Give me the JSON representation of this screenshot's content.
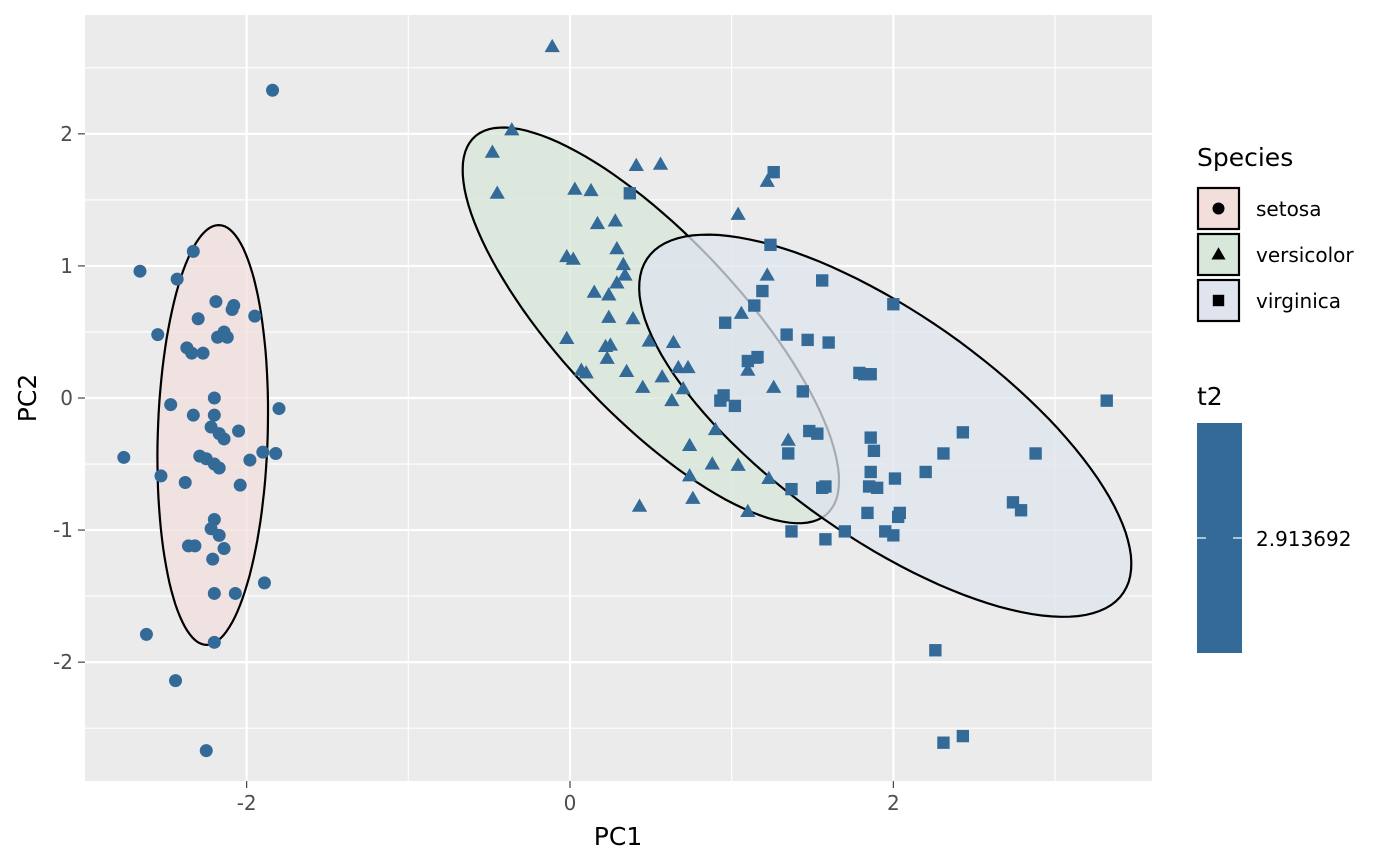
{
  "chart_data": {
    "type": "scatter",
    "xlabel": "PC1",
    "ylabel": "PC2",
    "xlim": [
      -3.0,
      3.6
    ],
    "ylim": [
      -2.9,
      2.9
    ],
    "x_ticks": [
      -2,
      0,
      2
    ],
    "x_tick_labels": [
      "-2",
      "0",
      "2"
    ],
    "y_ticks": [
      -2,
      -1,
      0,
      1,
      2
    ],
    "y_tick_labels": [
      "-2",
      "-1",
      "0",
      "1",
      "2"
    ],
    "grid": true,
    "panel_background": "#ebebeb",
    "point_color": "#336a98",
    "legend_position": "right",
    "legend_shape_title": "Species",
    "legend_color_title": "t2",
    "legend_color_value": "2.913692",
    "series": [
      {
        "name": "setosa",
        "shape": "circle",
        "fill": "#f2dfdc",
        "ellipse": {
          "cx": -2.21,
          "cy": -0.28,
          "rx": 1.59,
          "ry": 0.34,
          "angle_deg": 88.6
        },
        "points": [
          [
            -1.84,
            2.33
          ],
          [
            -2.66,
            0.96
          ],
          [
            -2.33,
            1.11
          ],
          [
            -2.43,
            0.9
          ],
          [
            -2.55,
            0.48
          ],
          [
            -2.19,
            0.73
          ],
          [
            -2.08,
            0.7
          ],
          [
            -2.09,
            0.67
          ],
          [
            -2.3,
            0.6
          ],
          [
            -2.14,
            0.5
          ],
          [
            -2.12,
            0.46
          ],
          [
            -2.18,
            0.46
          ],
          [
            -1.95,
            0.62
          ],
          [
            -2.37,
            0.38
          ],
          [
            -2.34,
            0.34
          ],
          [
            -2.27,
            0.34
          ],
          [
            -2.2,
            0.0
          ],
          [
            -2.47,
            -0.05
          ],
          [
            -2.33,
            -0.13
          ],
          [
            -2.2,
            -0.13
          ],
          [
            -2.22,
            -0.22
          ],
          [
            -2.17,
            -0.27
          ],
          [
            -2.14,
            -0.31
          ],
          [
            -2.05,
            -0.25
          ],
          [
            -1.8,
            -0.08
          ],
          [
            -2.76,
            -0.45
          ],
          [
            -2.53,
            -0.59
          ],
          [
            -2.29,
            -0.44
          ],
          [
            -2.25,
            -0.46
          ],
          [
            -2.2,
            -0.5
          ],
          [
            -2.17,
            -0.53
          ],
          [
            -1.98,
            -0.47
          ],
          [
            -1.9,
            -0.41
          ],
          [
            -1.82,
            -0.42
          ],
          [
            -2.38,
            -0.64
          ],
          [
            -2.04,
            -0.66
          ],
          [
            -2.2,
            -0.92
          ],
          [
            -2.22,
            -0.99
          ],
          [
            -2.17,
            -1.04
          ],
          [
            -2.36,
            -1.12
          ],
          [
            -2.32,
            -1.12
          ],
          [
            -2.14,
            -1.14
          ],
          [
            -1.89,
            -1.4
          ],
          [
            -2.2,
            -1.48
          ],
          [
            -2.07,
            -1.48
          ],
          [
            -2.62,
            -1.79
          ],
          [
            -2.2,
            -1.85
          ],
          [
            -2.44,
            -2.14
          ],
          [
            -2.25,
            -2.67
          ],
          [
            -2.21,
            -1.22
          ]
        ]
      },
      {
        "name": "versicolor",
        "shape": "triangle",
        "fill": "#d7e7da",
        "ellipse": {
          "cx": 0.5,
          "cy": 0.55,
          "rx": 1.8,
          "ry": 0.6,
          "angle_deg": -54.0
        },
        "points": [
          [
            -0.11,
            2.66
          ],
          [
            -0.36,
            2.03
          ],
          [
            -0.48,
            1.86
          ],
          [
            -0.45,
            1.55
          ],
          [
            0.41,
            1.76
          ],
          [
            0.56,
            1.77
          ],
          [
            0.03,
            1.58
          ],
          [
            0.13,
            1.57
          ],
          [
            1.22,
            1.64
          ],
          [
            1.04,
            1.39
          ],
          [
            0.17,
            1.32
          ],
          [
            0.28,
            1.34
          ],
          [
            0.29,
            1.13
          ],
          [
            0.33,
            1.01
          ],
          [
            0.34,
            0.93
          ],
          [
            -0.02,
            1.07
          ],
          [
            0.02,
            1.05
          ],
          [
            0.29,
            0.87
          ],
          [
            0.15,
            0.8
          ],
          [
            0.24,
            0.78
          ],
          [
            0.39,
            0.6
          ],
          [
            0.24,
            0.61
          ],
          [
            0.25,
            0.4
          ],
          [
            0.49,
            0.43
          ],
          [
            0.64,
            0.42
          ],
          [
            0.23,
            0.3
          ],
          [
            0.22,
            0.39
          ],
          [
            0.07,
            0.21
          ],
          [
            0.1,
            0.19
          ],
          [
            0.35,
            0.2
          ],
          [
            0.57,
            0.16
          ],
          [
            0.67,
            0.23
          ],
          [
            0.73,
            0.23
          ],
          [
            0.7,
            0.07
          ],
          [
            0.45,
            0.08
          ],
          [
            0.63,
            -0.02
          ],
          [
            -0.02,
            0.45
          ],
          [
            1.22,
            0.93
          ],
          [
            1.06,
            0.64
          ],
          [
            1.14,
            0.3
          ],
          [
            1.1,
            0.21
          ],
          [
            1.26,
            0.08
          ],
          [
            0.74,
            -0.36
          ],
          [
            0.9,
            -0.24
          ],
          [
            0.74,
            -0.59
          ],
          [
            0.88,
            -0.5
          ],
          [
            1.04,
            -0.51
          ],
          [
            1.35,
            -0.32
          ],
          [
            0.76,
            -0.76
          ],
          [
            1.23,
            -0.61
          ],
          [
            0.43,
            -0.82
          ],
          [
            1.1,
            -0.86
          ]
        ]
      },
      {
        "name": "virginica",
        "shape": "square",
        "fill": "#dfe4ee",
        "ellipse": {
          "cx": 1.95,
          "cy": -0.21,
          "rx": 1.95,
          "ry": 0.78,
          "angle_deg": -43.0
        },
        "points": [
          [
            1.26,
            1.71
          ],
          [
            0.37,
            1.55
          ],
          [
            1.24,
            1.16
          ],
          [
            1.56,
            0.89
          ],
          [
            2.0,
            0.71
          ],
          [
            1.19,
            0.81
          ],
          [
            1.14,
            0.7
          ],
          [
            0.96,
            0.57
          ],
          [
            1.1,
            0.28
          ],
          [
            1.16,
            0.31
          ],
          [
            1.34,
            0.48
          ],
          [
            1.47,
            0.44
          ],
          [
            1.6,
            0.42
          ],
          [
            1.79,
            0.19
          ],
          [
            1.86,
            0.18
          ],
          [
            1.44,
            0.05
          ],
          [
            0.95,
            0.02
          ],
          [
            0.93,
            -0.02
          ],
          [
            1.02,
            -0.06
          ],
          [
            1.48,
            -0.25
          ],
          [
            1.53,
            -0.27
          ],
          [
            1.86,
            -0.3
          ],
          [
            1.88,
            -0.4
          ],
          [
            1.35,
            -0.42
          ],
          [
            2.31,
            -0.42
          ],
          [
            2.43,
            -0.26
          ],
          [
            2.88,
            -0.42
          ],
          [
            3.32,
            -0.02
          ],
          [
            1.86,
            -0.56
          ],
          [
            2.01,
            -0.61
          ],
          [
            2.2,
            -0.56
          ],
          [
            1.58,
            -0.67
          ],
          [
            1.85,
            -0.67
          ],
          [
            1.9,
            -0.68
          ],
          [
            2.04,
            -0.87
          ],
          [
            2.03,
            -0.9
          ],
          [
            1.37,
            -0.69
          ],
          [
            1.84,
            -0.87
          ],
          [
            1.37,
            -1.01
          ],
          [
            1.7,
            -1.01
          ],
          [
            1.95,
            -1.01
          ],
          [
            2.0,
            -1.04
          ],
          [
            1.58,
            -1.07
          ],
          [
            2.74,
            -0.79
          ],
          [
            2.79,
            -0.85
          ],
          [
            2.26,
            -1.91
          ],
          [
            2.31,
            -2.61
          ],
          [
            2.43,
            -2.56
          ],
          [
            1.56,
            -0.68
          ],
          [
            1.82,
            0.18
          ]
        ]
      }
    ]
  }
}
